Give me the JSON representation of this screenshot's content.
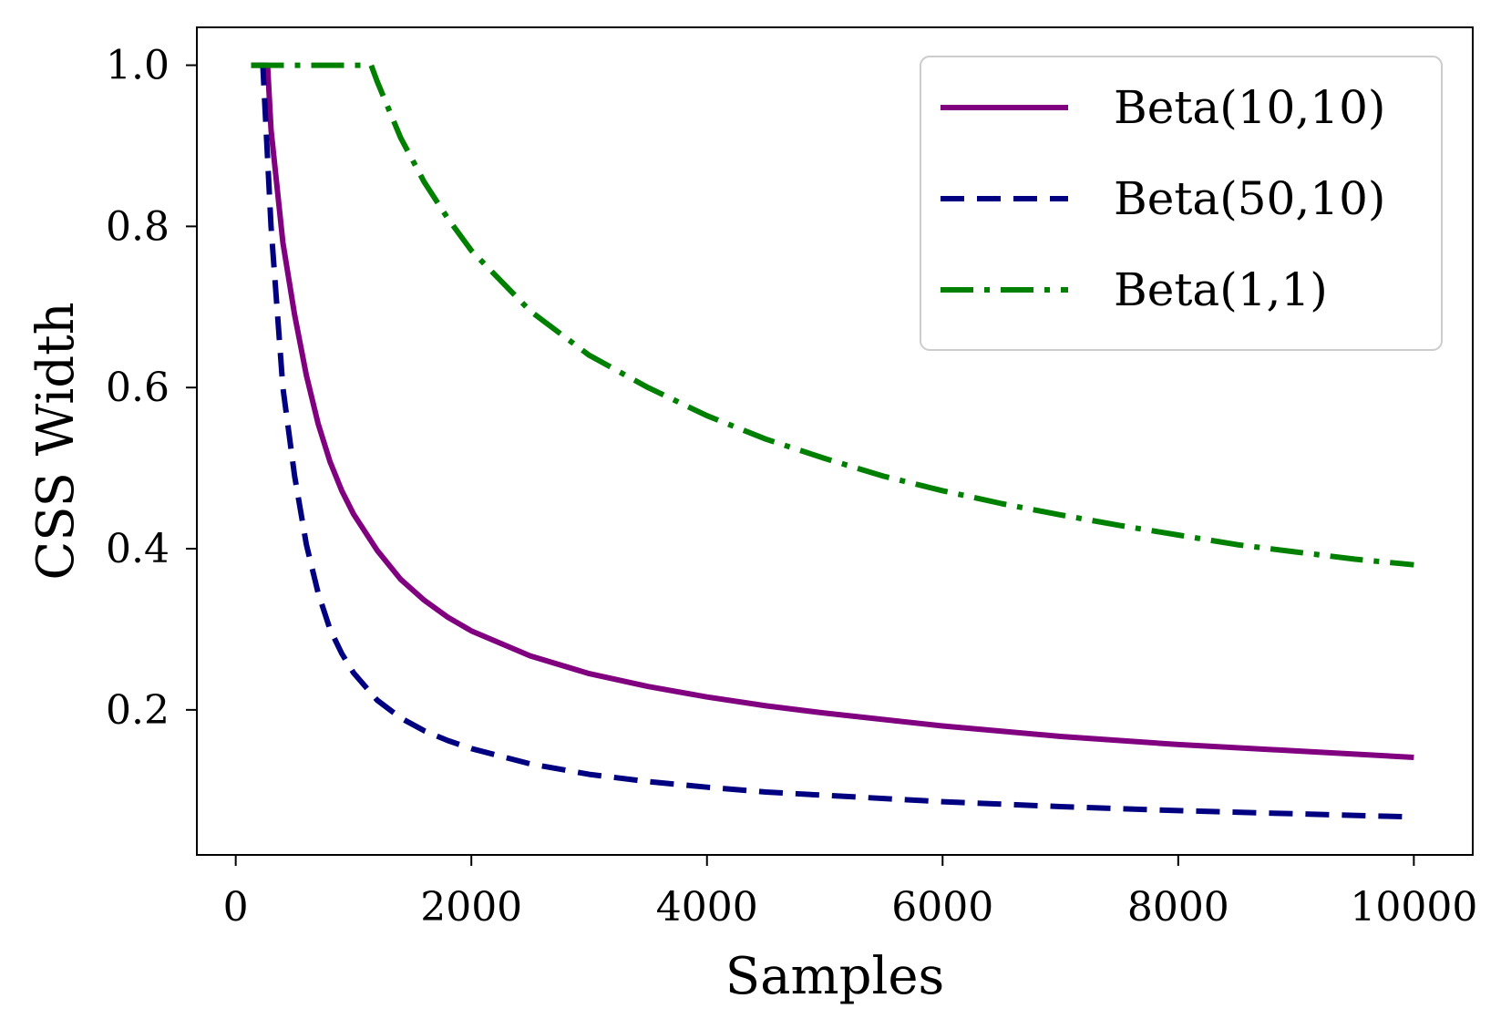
{
  "chart_data": {
    "type": "line",
    "title": "",
    "xlabel": "Samples",
    "ylabel": "CSS Width",
    "xlim": [
      -330,
      10500
    ],
    "ylim": [
      0.02,
      1.047
    ],
    "x_ticks": [
      0,
      2000,
      4000,
      6000,
      8000,
      10000
    ],
    "x_tick_labels": [
      "0",
      "2000",
      "4000",
      "6000",
      "8000",
      "10000"
    ],
    "y_ticks": [
      0.2,
      0.4,
      0.6,
      0.8,
      1.0
    ],
    "y_tick_labels": [
      "0.2",
      "0.4",
      "0.6",
      "0.8",
      "1.0"
    ],
    "grid": false,
    "legend_position": "top-right",
    "series": [
      {
        "name": "Beta(10,10)",
        "color": "#800080",
        "line_style": "solid",
        "x": [
          130,
          270,
          300,
          400,
          500,
          600,
          700,
          800,
          900,
          1000,
          1200,
          1400,
          1600,
          1800,
          2000,
          2500,
          3000,
          3500,
          4000,
          4500,
          5000,
          6000,
          7000,
          8000,
          9000,
          10000
        ],
        "y": [
          1.0,
          1.0,
          0.92,
          0.78,
          0.69,
          0.615,
          0.555,
          0.508,
          0.472,
          0.443,
          0.398,
          0.362,
          0.336,
          0.315,
          0.298,
          0.267,
          0.245,
          0.229,
          0.216,
          0.205,
          0.196,
          0.18,
          0.167,
          0.157,
          0.149,
          0.141
        ]
      },
      {
        "name": "Beta(50,10)",
        "color": "#000080",
        "line_style": "dashed",
        "x": [
          200,
          230,
          300,
          400,
          500,
          600,
          700,
          800,
          900,
          1000,
          1200,
          1400,
          1600,
          1800,
          2000,
          2500,
          3000,
          3500,
          4000,
          4500,
          5000,
          6000,
          7000,
          8000,
          9000,
          10000
        ],
        "y": [
          1.0,
          1.0,
          0.8,
          0.6,
          0.49,
          0.405,
          0.345,
          0.3,
          0.27,
          0.246,
          0.212,
          0.19,
          0.174,
          0.162,
          0.152,
          0.133,
          0.12,
          0.111,
          0.104,
          0.098,
          0.094,
          0.086,
          0.08,
          0.075,
          0.071,
          0.067
        ]
      },
      {
        "name": "Beta(1,1)",
        "color": "#008000",
        "line_style": "dashdot",
        "x": [
          130,
          1150,
          1200,
          1300,
          1400,
          1600,
          1800,
          2000,
          2500,
          3000,
          3500,
          4000,
          4500,
          5000,
          5500,
          6000,
          6500,
          7000,
          7500,
          8000,
          8500,
          9000,
          9500,
          10000
        ],
        "y": [
          1.0,
          1.0,
          0.98,
          0.945,
          0.91,
          0.855,
          0.81,
          0.77,
          0.695,
          0.64,
          0.6,
          0.565,
          0.536,
          0.512,
          0.49,
          0.472,
          0.456,
          0.442,
          0.429,
          0.417,
          0.405,
          0.396,
          0.387,
          0.38
        ]
      }
    ]
  }
}
